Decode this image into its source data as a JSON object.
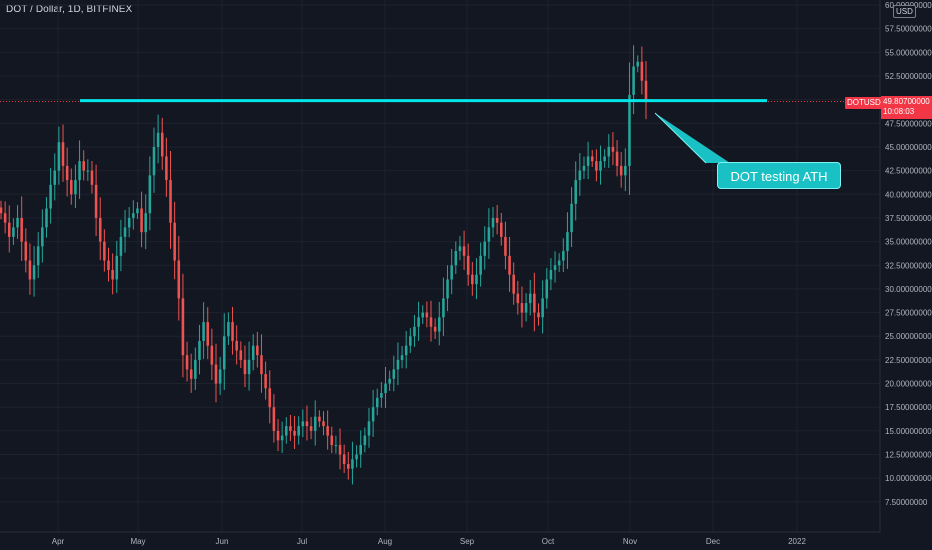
{
  "header": {
    "title": "DOT / Dollar, 1D, BITFINEX",
    "currency": "USD"
  },
  "price_label": {
    "symbol": "DOTUSD",
    "price": "49.80700000",
    "countdown": "10:08:03"
  },
  "callout": {
    "text": "DOT testing ATH"
  },
  "colors": {
    "background": "#131722",
    "up": "#26a69a",
    "down": "#ef5350",
    "resistance": "#00e5e8",
    "price_line": "#f23645",
    "axis_text": "#b2b5be",
    "grid": "#1e222d"
  },
  "chart_data": {
    "type": "candlestick",
    "title": "DOT / Dollar, 1D, BITFINEX",
    "xlabel": "",
    "ylabel": "USD",
    "ylim": [
      5.9,
      60.0
    ],
    "grid": true,
    "legend": "none",
    "x_ticks": [
      "Apr",
      "May",
      "Jun",
      "Jul",
      "Aug",
      "Sep",
      "Oct",
      "Nov",
      "Dec",
      "2022"
    ],
    "y_ticks": [
      "60.00000000",
      "57.50000000",
      "55.00000000",
      "52.50000000",
      "50.00000000",
      "47.50000000",
      "45.00000000",
      "42.50000000",
      "40.00000000",
      "37.50000000",
      "35.00000000",
      "32.50000000",
      "30.00000000",
      "27.50000000",
      "25.00000000",
      "22.50000000",
      "20.00000000",
      "17.50000000",
      "15.00000000",
      "12.50000000",
      "10.00000000",
      "7.50000000"
    ],
    "resistance_level": 49.9,
    "last_price": 49.807,
    "close_series": [
      38.0,
      37.0,
      35.5,
      36.5,
      37.5,
      35.0,
      33.0,
      31.0,
      32.5,
      34.5,
      36.5,
      38.5,
      41.0,
      42.5,
      45.5,
      43.0,
      41.5,
      40.0,
      41.5,
      43.5,
      42.5,
      42.5,
      41.0,
      37.5,
      35.0,
      33.0,
      32.0,
      31.0,
      33.5,
      35.5,
      36.5,
      37.5,
      38.0,
      38.5,
      36.0,
      38.0,
      42.0,
      45.0,
      46.5,
      44.0,
      41.5,
      37.0,
      33.0,
      29.0,
      23.0,
      21.5,
      20.5,
      22.5,
      24.5,
      26.5,
      24.0,
      22.0,
      20.0,
      21.5,
      25.0,
      26.5,
      24.5,
      23.5,
      22.5,
      21.0,
      22.5,
      24.0,
      23.0,
      21.0,
      19.5,
      17.5,
      15.0,
      14.0,
      14.5,
      15.5,
      15.0,
      14.5,
      15.5,
      16.0,
      15.5,
      15.0,
      16.5,
      16.0,
      15.5,
      14.5,
      13.5,
      13.5,
      12.5,
      11.5,
      11.0,
      12.0,
      12.5,
      13.5,
      14.5,
      16.0,
      17.5,
      18.5,
      19.0,
      20.0,
      20.5,
      21.5,
      22.5,
      23.0,
      24.0,
      25.0,
      26.0,
      27.0,
      27.5,
      27.0,
      26.0,
      25.5,
      27.0,
      29.0,
      31.0,
      32.5,
      34.0,
      34.5,
      33.5,
      31.5,
      30.5,
      31.5,
      33.5,
      35.0,
      36.5,
      37.5,
      37.0,
      35.5,
      33.5,
      31.5,
      29.5,
      28.5,
      27.5,
      28.5,
      29.5,
      27.5,
      27.0,
      29.0,
      31.0,
      32.0,
      32.5,
      33.0,
      34.0,
      36.0,
      39.0,
      41.5,
      42.5,
      43.0,
      44.0,
      43.5,
      42.5,
      43.5,
      44.0,
      45.0,
      44.5,
      43.0,
      42.0,
      43.0,
      50.5,
      53.5,
      54.0,
      52.0,
      49.807
    ]
  }
}
